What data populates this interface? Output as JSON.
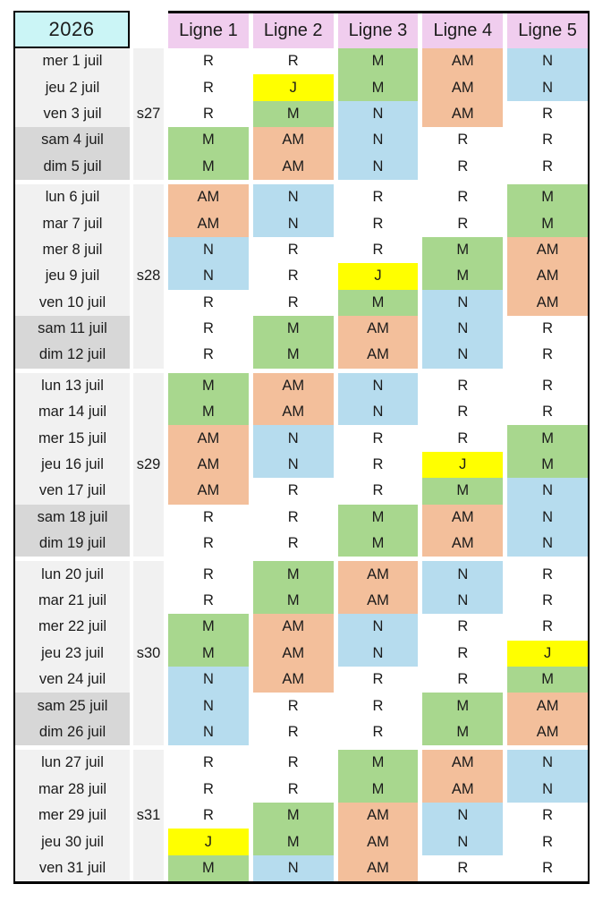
{
  "year": "2026",
  "columns": [
    "Ligne 1",
    "Ligne 2",
    "Ligne 3",
    "Ligne 4",
    "Ligne 5"
  ],
  "shift_colors": {
    "R": "#ffffff",
    "M": "#a8d78e",
    "AM": "#f3bf9b",
    "N": "#b6dcee",
    "J": "#ffff00"
  },
  "weeks": [
    {
      "label": "s27",
      "days": [
        {
          "date": "mer 1 juil",
          "weekend": false,
          "shifts": [
            "R",
            "R",
            "M",
            "AM",
            "N"
          ]
        },
        {
          "date": "jeu 2 juil",
          "weekend": false,
          "shifts": [
            "R",
            "J",
            "M",
            "AM",
            "N"
          ]
        },
        {
          "date": "ven 3 juil",
          "weekend": false,
          "shifts": [
            "R",
            "M",
            "N",
            "AM",
            "R"
          ]
        },
        {
          "date": "sam 4 juil",
          "weekend": true,
          "shifts": [
            "M",
            "AM",
            "N",
            "R",
            "R"
          ]
        },
        {
          "date": "dim 5 juil",
          "weekend": true,
          "shifts": [
            "M",
            "AM",
            "N",
            "R",
            "R"
          ]
        }
      ]
    },
    {
      "label": "s28",
      "days": [
        {
          "date": "lun 6 juil",
          "weekend": false,
          "shifts": [
            "AM",
            "N",
            "R",
            "R",
            "M"
          ]
        },
        {
          "date": "mar 7 juil",
          "weekend": false,
          "shifts": [
            "AM",
            "N",
            "R",
            "R",
            "M"
          ]
        },
        {
          "date": "mer 8 juil",
          "weekend": false,
          "shifts": [
            "N",
            "R",
            "R",
            "M",
            "AM"
          ]
        },
        {
          "date": "jeu 9 juil",
          "weekend": false,
          "shifts": [
            "N",
            "R",
            "J",
            "M",
            "AM"
          ]
        },
        {
          "date": "ven 10 juil",
          "weekend": false,
          "shifts": [
            "R",
            "R",
            "M",
            "N",
            "AM"
          ]
        },
        {
          "date": "sam 11 juil",
          "weekend": true,
          "shifts": [
            "R",
            "M",
            "AM",
            "N",
            "R"
          ]
        },
        {
          "date": "dim 12 juil",
          "weekend": true,
          "shifts": [
            "R",
            "M",
            "AM",
            "N",
            "R"
          ]
        }
      ]
    },
    {
      "label": "s29",
      "days": [
        {
          "date": "lun 13 juil",
          "weekend": false,
          "shifts": [
            "M",
            "AM",
            "N",
            "R",
            "R"
          ]
        },
        {
          "date": "mar 14 juil",
          "weekend": false,
          "shifts": [
            "M",
            "AM",
            "N",
            "R",
            "R"
          ]
        },
        {
          "date": "mer 15 juil",
          "weekend": false,
          "shifts": [
            "AM",
            "N",
            "R",
            "R",
            "M"
          ]
        },
        {
          "date": "jeu 16 juil",
          "weekend": false,
          "shifts": [
            "AM",
            "N",
            "R",
            "J",
            "M"
          ]
        },
        {
          "date": "ven 17 juil",
          "weekend": false,
          "shifts": [
            "AM",
            "R",
            "R",
            "M",
            "N"
          ]
        },
        {
          "date": "sam 18 juil",
          "weekend": true,
          "shifts": [
            "R",
            "R",
            "M",
            "AM",
            "N"
          ]
        },
        {
          "date": "dim 19 juil",
          "weekend": true,
          "shifts": [
            "R",
            "R",
            "M",
            "AM",
            "N"
          ]
        }
      ]
    },
    {
      "label": "s30",
      "days": [
        {
          "date": "lun 20 juil",
          "weekend": false,
          "shifts": [
            "R",
            "M",
            "AM",
            "N",
            "R"
          ]
        },
        {
          "date": "mar 21 juil",
          "weekend": false,
          "shifts": [
            "R",
            "M",
            "AM",
            "N",
            "R"
          ]
        },
        {
          "date": "mer 22 juil",
          "weekend": false,
          "shifts": [
            "M",
            "AM",
            "N",
            "R",
            "R"
          ]
        },
        {
          "date": "jeu 23 juil",
          "weekend": false,
          "shifts": [
            "M",
            "AM",
            "N",
            "R",
            "J"
          ]
        },
        {
          "date": "ven 24 juil",
          "weekend": false,
          "shifts": [
            "N",
            "AM",
            "R",
            "R",
            "M"
          ]
        },
        {
          "date": "sam 25 juil",
          "weekend": true,
          "shifts": [
            "N",
            "R",
            "R",
            "M",
            "AM"
          ]
        },
        {
          "date": "dim 26 juil",
          "weekend": true,
          "shifts": [
            "N",
            "R",
            "R",
            "M",
            "AM"
          ]
        }
      ]
    },
    {
      "label": "s31",
      "days": [
        {
          "date": "lun 27 juil",
          "weekend": false,
          "shifts": [
            "R",
            "R",
            "M",
            "AM",
            "N"
          ]
        },
        {
          "date": "mar 28 juil",
          "weekend": false,
          "shifts": [
            "R",
            "R",
            "M",
            "AM",
            "N"
          ]
        },
        {
          "date": "mer 29 juil",
          "weekend": false,
          "shifts": [
            "R",
            "M",
            "AM",
            "N",
            "R"
          ]
        },
        {
          "date": "jeu 30 juil",
          "weekend": false,
          "shifts": [
            "J",
            "M",
            "AM",
            "N",
            "R"
          ]
        },
        {
          "date": "ven 31 juil",
          "weekend": false,
          "shifts": [
            "M",
            "N",
            "AM",
            "R",
            "R"
          ]
        }
      ]
    }
  ]
}
